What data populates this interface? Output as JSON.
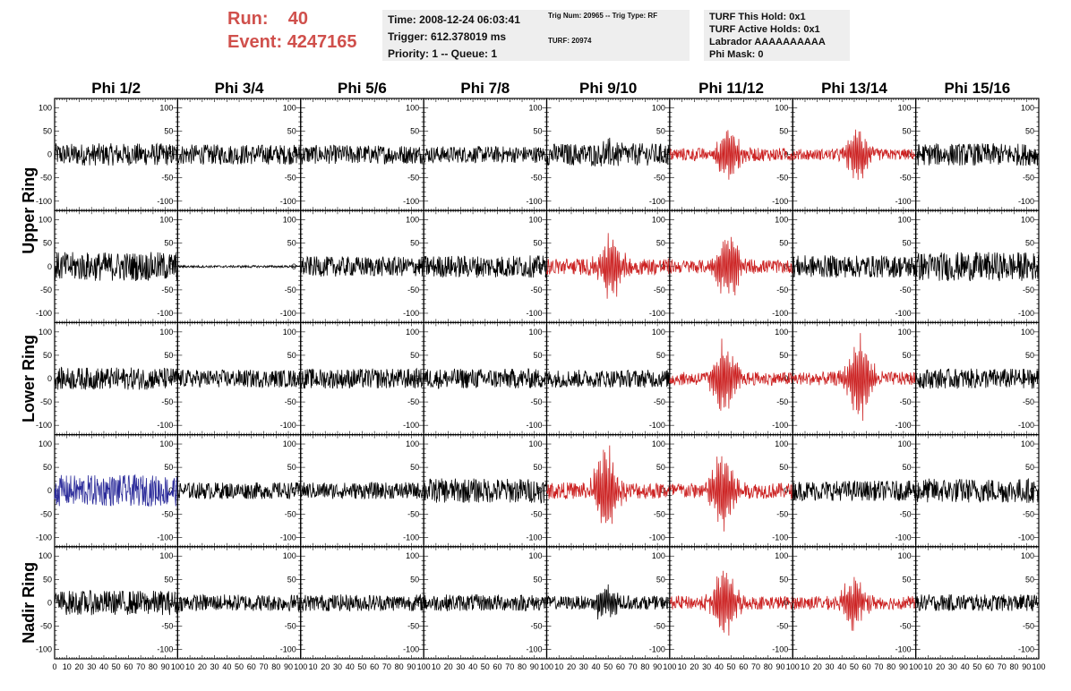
{
  "header": {
    "run_label": "Run:",
    "run_value": "40",
    "event_label": "Event:",
    "event_value": "4247165"
  },
  "info_time": {
    "time": "Time: 2008-12-24 06:03:41",
    "trigger": "Trigger: 612.378019 ms",
    "priority": "Priority: 1 -- Queue: 1"
  },
  "info_trig": {
    "trig": "Trig Num: 20965 -- Trig Type: RF",
    "turf": "TURF: 20974"
  },
  "info_turf": {
    "hold": "TURF This Hold: 0x1",
    "active": "TURF Active Holds: 0x1",
    "labrador": "Labrador AAAAAAAAAA",
    "phimask": "Phi Mask: 0"
  },
  "colors": {
    "header_red": "#d0504c",
    "trace_normal": "#000000",
    "trace_triggered": "#cc2222",
    "trace_blue": "#2b2b9a",
    "info_bg": "#eeeeee"
  },
  "chart_data": {
    "type": "line",
    "columns": [
      "Phi 1/2",
      "Phi 3/4",
      "Phi 5/6",
      "Phi 7/8",
      "Phi 9/10",
      "Phi 11/12",
      "Phi 13/14",
      "Phi 15/16"
    ],
    "ring_labels": [
      "Upper Ring",
      "Lower Ring",
      "Nadir Ring"
    ],
    "rows": 5,
    "xlim": [
      0,
      100
    ],
    "ylim": [
      -120,
      120
    ],
    "x_ticks_first": [
      "0",
      "10",
      "20",
      "30",
      "40",
      "50",
      "60",
      "70",
      "80",
      "90",
      "100"
    ],
    "x_ticks_other": [
      "10",
      "20",
      "30",
      "40",
      "50",
      "60",
      "70",
      "80",
      "90",
      "100"
    ],
    "y_ticks": [
      {
        "v": 100,
        "t": "100"
      },
      {
        "v": 50,
        "t": "50"
      },
      {
        "v": 0,
        "t": "0"
      },
      {
        "v": -50,
        "t": "-50"
      },
      {
        "v": -100,
        "t": "-100"
      }
    ],
    "panels": [
      [
        {
          "color": "black",
          "noise": 20,
          "pulse": 0
        },
        {
          "color": "black",
          "noise": 18,
          "pulse": 0
        },
        {
          "color": "black",
          "noise": 17,
          "pulse": 0
        },
        {
          "color": "black",
          "noise": 15,
          "pulse": 0
        },
        {
          "color": "black",
          "noise": 20,
          "pulse": 15,
          "center": 50
        },
        {
          "color": "red",
          "noise": 12,
          "pulse": 55,
          "center": 48
        },
        {
          "color": "red",
          "noise": 10,
          "pulse": 55,
          "center": 52
        },
        {
          "color": "black",
          "noise": 20,
          "pulse": 0
        }
      ],
      [
        {
          "color": "black",
          "noise": 26,
          "pulse": 0
        },
        {
          "color": "black",
          "noise": 2,
          "pulse": 0
        },
        {
          "color": "black",
          "noise": 18,
          "pulse": 0
        },
        {
          "color": "black",
          "noise": 20,
          "pulse": 0
        },
        {
          "color": "red",
          "noise": 15,
          "pulse": 65,
          "center": 52
        },
        {
          "color": "red",
          "noise": 12,
          "pulse": 80,
          "center": 48
        },
        {
          "color": "black",
          "noise": 20,
          "pulse": 0
        },
        {
          "color": "black",
          "noise": 26,
          "pulse": 0
        }
      ],
      [
        {
          "color": "black",
          "noise": 20,
          "pulse": 0
        },
        {
          "color": "black",
          "noise": 16,
          "pulse": 0
        },
        {
          "color": "black",
          "noise": 18,
          "pulse": 0
        },
        {
          "color": "black",
          "noise": 18,
          "pulse": 0
        },
        {
          "color": "black",
          "noise": 16,
          "pulse": 0
        },
        {
          "color": "red",
          "noise": 12,
          "pulse": 80,
          "center": 45
        },
        {
          "color": "red",
          "noise": 12,
          "pulse": 90,
          "center": 55
        },
        {
          "color": "black",
          "noise": 18,
          "pulse": 0
        }
      ],
      [
        {
          "color": "blue",
          "noise": 28,
          "pulse": 0
        },
        {
          "color": "black",
          "noise": 15,
          "pulse": 0
        },
        {
          "color": "black",
          "noise": 15,
          "pulse": 0
        },
        {
          "color": "black",
          "noise": 22,
          "pulse": 0
        },
        {
          "color": "red",
          "noise": 15,
          "pulse": 95,
          "center": 48
        },
        {
          "color": "red",
          "noise": 14,
          "pulse": 85,
          "center": 43
        },
        {
          "color": "black",
          "noise": 18,
          "pulse": 0
        },
        {
          "color": "black",
          "noise": 22,
          "pulse": 0
        }
      ],
      [
        {
          "color": "black",
          "noise": 22,
          "pulse": 0
        },
        {
          "color": "black",
          "noise": 15,
          "pulse": 0
        },
        {
          "color": "black",
          "noise": 15,
          "pulse": 0
        },
        {
          "color": "black",
          "noise": 15,
          "pulse": 0
        },
        {
          "color": "black",
          "noise": 12,
          "pulse": 40,
          "center": 48
        },
        {
          "color": "red",
          "noise": 12,
          "pulse": 80,
          "center": 45
        },
        {
          "color": "red",
          "noise": 12,
          "pulse": 60,
          "center": 50
        },
        {
          "color": "black",
          "noise": 15,
          "pulse": 0
        }
      ]
    ]
  }
}
